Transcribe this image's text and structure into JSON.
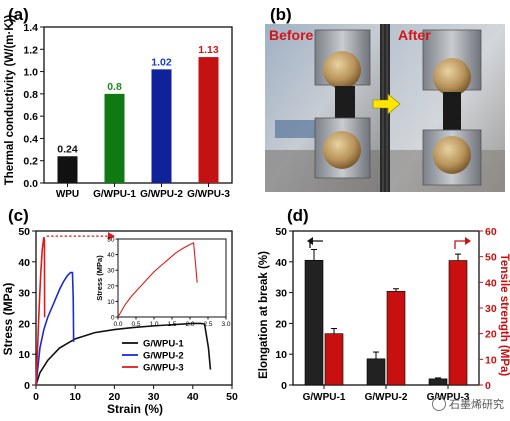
{
  "panels": {
    "a": "(a)",
    "b": "(b)",
    "c": "(c)",
    "d": "(d)"
  },
  "photo": {
    "before": "Before",
    "after": "After"
  },
  "watermark": "石墨烯研究",
  "chart_data": [
    {
      "panel": "a",
      "type": "bar",
      "title": "",
      "xlabel": "",
      "ylabel": "Thermal conductivity (W/(m·K))",
      "categories": [
        "WPU",
        "G/WPU-1",
        "G/WPU-2",
        "G/WPU-3"
      ],
      "values": [
        0.24,
        0.8,
        1.02,
        1.13
      ],
      "value_labels": [
        "0.24",
        "0.8",
        "1.02",
        "1.13"
      ],
      "colors": [
        "#111111",
        "#0f7a12",
        "#10229a",
        "#c41212"
      ],
      "label_colors": [
        "#111111",
        "#1a8a1a",
        "#1a3ab8",
        "#d41515"
      ],
      "ylim": [
        0,
        1.4
      ],
      "yticks": [
        "0.0",
        "0.2",
        "0.4",
        "0.6",
        "0.8",
        "1.0",
        "1.2",
        "1.4"
      ]
    },
    {
      "panel": "c",
      "type": "line",
      "xlabel": "Strain (%)",
      "ylabel": "Stress (MPa)",
      "xlim": [
        0,
        50
      ],
      "ylim": [
        0,
        50
      ],
      "xticks": [
        "0",
        "10",
        "20",
        "30",
        "40",
        "50"
      ],
      "yticks": [
        "0",
        "10",
        "20",
        "30",
        "40",
        "50"
      ],
      "legend_position": "bottom-right",
      "series": [
        {
          "name": "G/WPU-1",
          "color": "#111111",
          "x": [
            0,
            1,
            3,
            6,
            10,
            15,
            20,
            25,
            30,
            35,
            40,
            42,
            43,
            44,
            44.5
          ],
          "y": [
            0,
            4,
            8,
            12,
            15,
            17,
            18,
            18.7,
            19.2,
            19.6,
            20,
            20,
            19.8,
            12,
            5
          ]
        },
        {
          "name": "G/WPU-2",
          "color": "#1a2bd4",
          "x": [
            0,
            0.5,
            1,
            2,
            3,
            4,
            5,
            6,
            7,
            8,
            8.8,
            9.3,
            9.5,
            9.6
          ],
          "y": [
            0,
            6,
            12,
            18,
            22,
            25,
            28,
            31,
            33.5,
            35.5,
            36.5,
            36.5,
            28,
            14
          ]
        },
        {
          "name": "G/WPU-3",
          "color": "#e01a1a",
          "x": [
            0,
            0.4,
            0.8,
            1.2,
            1.6,
            2.0,
            2.15,
            2.2
          ],
          "y": [
            0,
            12,
            25,
            36,
            44,
            48,
            47,
            22
          ]
        }
      ],
      "inset": {
        "xlabel": "",
        "ylabel": "Stress (MPa)",
        "xlim": [
          0,
          3.0
        ],
        "ylim": [
          0,
          50
        ],
        "xticks": [
          "0.0",
          "0.5",
          "1.0",
          "1.5",
          "2.0",
          "2.5",
          "3.0"
        ],
        "yticks": [
          "0",
          "10",
          "20",
          "30",
          "40",
          "50"
        ],
        "series": [
          {
            "name": "G/WPU-3",
            "color": "#e01a1a",
            "x": [
              0,
              0.1,
              0.2,
              0.4,
              0.6,
              0.8,
              1.0,
              1.2,
              1.4,
              1.6,
              1.8,
              2.0,
              2.1,
              2.15,
              2.2
            ],
            "y": [
              0,
              4,
              8,
              14,
              19,
              24,
              29,
              33,
              37,
              41,
              44,
              46.5,
              47.5,
              35,
              22
            ]
          }
        ]
      }
    },
    {
      "panel": "d",
      "type": "bar",
      "xlabel": "",
      "ylabel": "Elongation at break (%)",
      "y2label": "Tensile strength (MPa)",
      "categories": [
        "G/WPU-1",
        "G/WPU-2",
        "G/WPU-3"
      ],
      "ylim": [
        0,
        50
      ],
      "y2lim": [
        0,
        60
      ],
      "yticks": [
        "0",
        "10",
        "20",
        "30",
        "40",
        "50"
      ],
      "y2ticks": [
        "0",
        "10",
        "20",
        "30",
        "40",
        "50",
        "60"
      ],
      "series": [
        {
          "axis": "left",
          "color": "#222222",
          "values": [
            40.5,
            8.5,
            2.0
          ],
          "errors": [
            3.5,
            2.2,
            0.3
          ]
        },
        {
          "axis": "right",
          "color": "#c81010",
          "values": [
            20,
            36.5,
            48.5
          ],
          "errors": [
            2.0,
            1.0,
            2.5
          ]
        }
      ]
    }
  ]
}
